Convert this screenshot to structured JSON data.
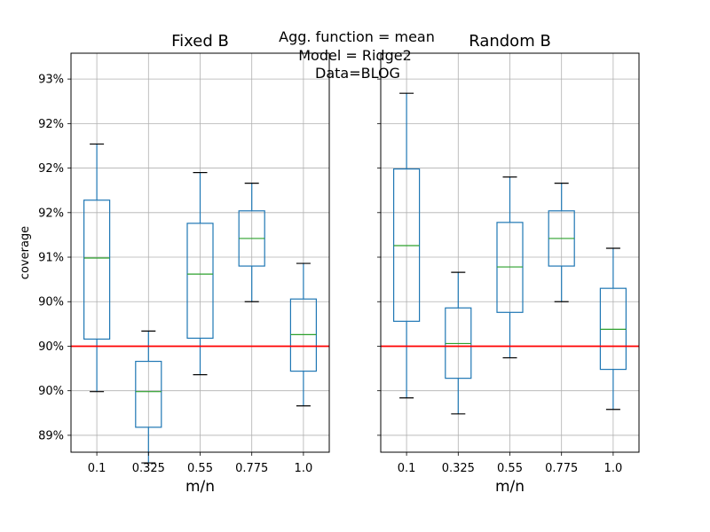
{
  "suptitle": [
    "Agg. function = mean",
    "Model = Ridge2",
    "Data=BLOG"
  ],
  "reference_color": "#ff0000",
  "box_color": "#1f77b4",
  "median_color": "#2ca02c",
  "chart_data": [
    {
      "type": "box",
      "title": "Fixed B",
      "xlabel": "m/n",
      "ylabel": "coverage",
      "categories": [
        "0.1",
        "0.325",
        "0.55",
        "0.775",
        "1.0"
      ],
      "ylim": [
        0.8881,
        0.9329
      ],
      "y_ticks": [
        0.89,
        0.895,
        0.9,
        0.905,
        0.91,
        0.915,
        0.92,
        0.925,
        0.93
      ],
      "y_tick_labels": [
        "89%",
        "90%",
        "90%",
        "90%",
        "91%",
        "92%",
        "92%",
        "92%",
        "93%"
      ],
      "reference_line": 0.9,
      "grid": true,
      "boxes": [
        {
          "whisker_low": 0.8949,
          "q1": 0.9008,
          "median": 0.9099,
          "q3": 0.9164,
          "whisker_high": 0.9227
        },
        {
          "whisker_low": 0.8869,
          "q1": 0.8909,
          "median": 0.8949,
          "q3": 0.8983,
          "whisker_high": 0.9017
        },
        {
          "whisker_low": 0.8968,
          "q1": 0.9009,
          "median": 0.9081,
          "q3": 0.9138,
          "whisker_high": 0.9195
        },
        {
          "whisker_low": 0.905,
          "q1": 0.909,
          "median": 0.9121,
          "q3": 0.9152,
          "whisker_high": 0.9183
        },
        {
          "whisker_low": 0.8933,
          "q1": 0.8972,
          "median": 0.9013,
          "q3": 0.9053,
          "whisker_high": 0.9093
        }
      ]
    },
    {
      "type": "box",
      "title": "Random B",
      "xlabel": "m/n",
      "ylabel": "",
      "categories": [
        "0.1",
        "0.325",
        "0.55",
        "0.775",
        "1.0"
      ],
      "ylim": [
        0.8881,
        0.9329
      ],
      "y_ticks": [
        0.89,
        0.895,
        0.9,
        0.905,
        0.91,
        0.915,
        0.92,
        0.925,
        0.93
      ],
      "y_tick_labels": [],
      "reference_line": 0.9,
      "grid": true,
      "boxes": [
        {
          "whisker_low": 0.8942,
          "q1": 0.9028,
          "median": 0.9113,
          "q3": 0.9199,
          "whisker_high": 0.9284
        },
        {
          "whisker_low": 0.8924,
          "q1": 0.8964,
          "median": 0.9003,
          "q3": 0.9043,
          "whisker_high": 0.9083
        },
        {
          "whisker_low": 0.8987,
          "q1": 0.9038,
          "median": 0.9089,
          "q3": 0.9139,
          "whisker_high": 0.919
        },
        {
          "whisker_low": 0.905,
          "q1": 0.909,
          "median": 0.9121,
          "q3": 0.9152,
          "whisker_high": 0.9183
        },
        {
          "whisker_low": 0.8929,
          "q1": 0.8974,
          "median": 0.9019,
          "q3": 0.9065,
          "whisker_high": 0.911
        }
      ]
    }
  ]
}
